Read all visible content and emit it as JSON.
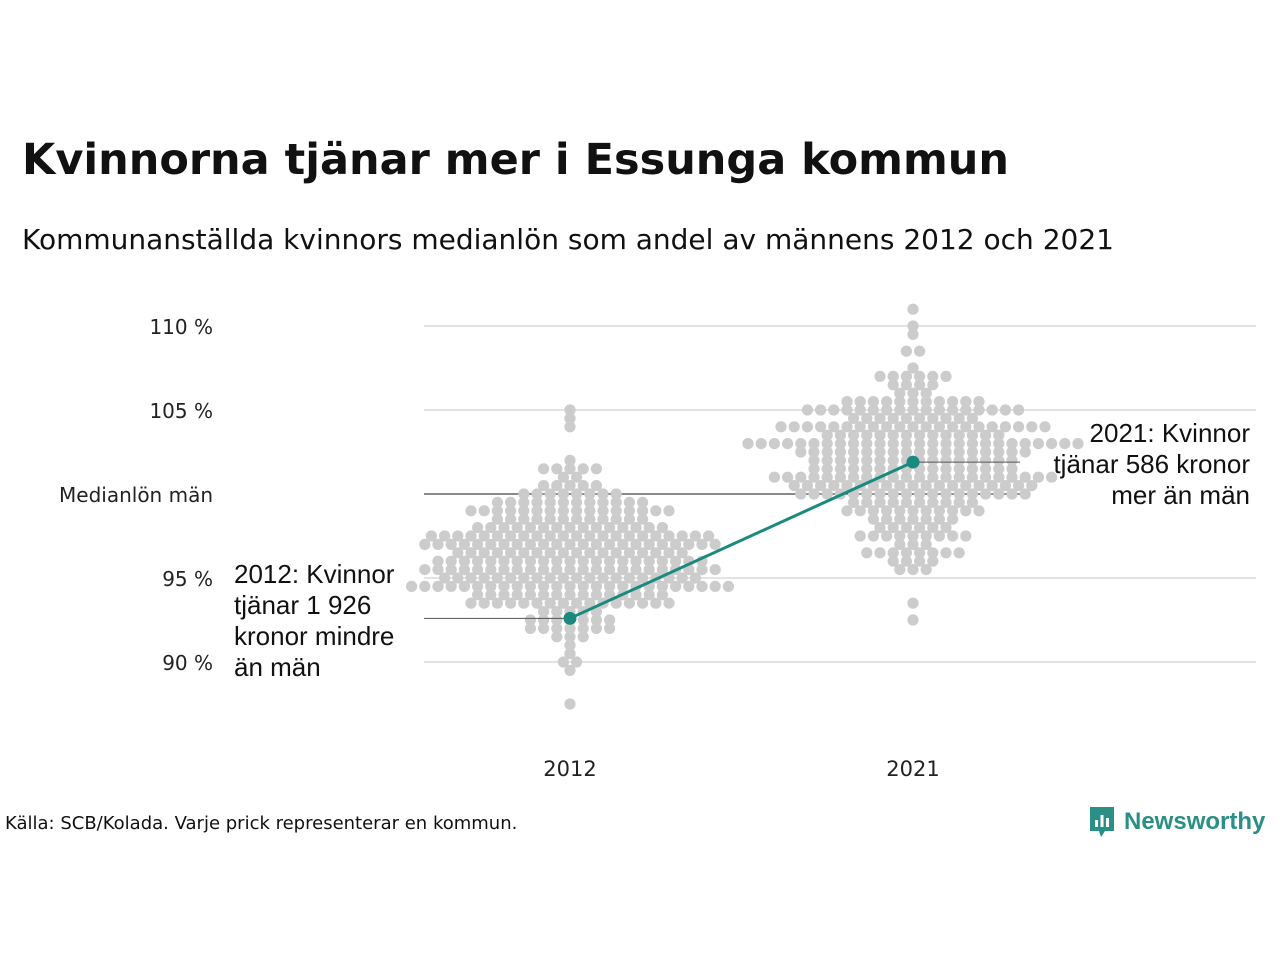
{
  "title": "Kvinnorna tjänar mer i Essunga kommun",
  "subtitle": "Kommunanställda kvinnors medianlön som andel av männens 2012 och 2021",
  "source": "Källa: SCB/Kolada. Varje prick representerar en kommun.",
  "brand": {
    "name": "Newsworthy",
    "icon": "newsworthy-logo-icon",
    "color": "#2a8f84"
  },
  "chart_data": {
    "type": "scatter",
    "subtype": "beeswarm",
    "categories": [
      "2012",
      "2021"
    ],
    "ylim": [
      86,
      112
    ],
    "yticks": [
      {
        "value": 90,
        "label": "90 %"
      },
      {
        "value": 95,
        "label": "95 %"
      },
      {
        "value": 100,
        "label": "Medianlön män"
      },
      {
        "value": 105,
        "label": "105 %"
      },
      {
        "value": 110,
        "label": "110 %"
      }
    ],
    "grid": true,
    "colors": {
      "dots": "#cccccc",
      "highlight": "#1a8a7e",
      "grid": "#e3e3e3",
      "baseline": "#444444"
    },
    "distribution": {
      "2012": {
        "min": 87.5,
        "max": 105.0,
        "median": 96.5,
        "count": 290
      },
      "2021": {
        "min": 92.5,
        "max": 111.0,
        "median": 101.8,
        "count": 290
      }
    },
    "highlight": {
      "name": "Essunga kommun",
      "values": [
        {
          "x": "2012",
          "y": 92.6
        },
        {
          "x": "2021",
          "y": 101.9
        }
      ]
    },
    "annotations": [
      {
        "x": "2012",
        "lines": [
          "2012: Kvinnor",
          "tjänar 1 926",
          "kronor mindre",
          "än män"
        ]
      },
      {
        "x": "2021",
        "lines": [
          "2021: Kvinnor",
          "tjänar 586 kronor",
          "mer än män"
        ]
      }
    ]
  }
}
